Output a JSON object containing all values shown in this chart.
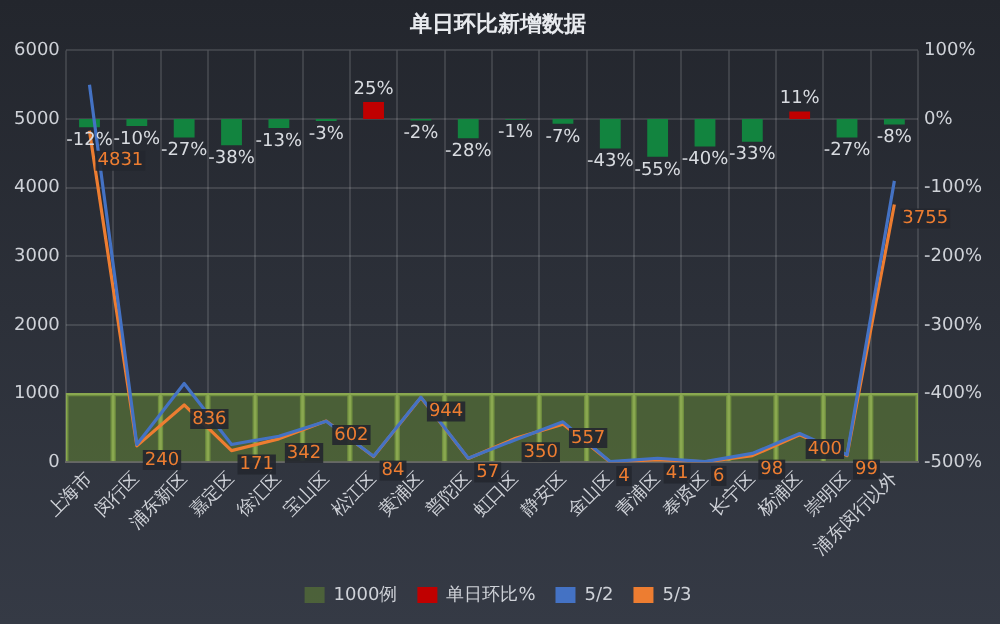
{
  "chart_data": {
    "type": "bar",
    "title": "单日环比新增数据",
    "categories": [
      "上海市",
      "闵行区",
      "浦东新区",
      "嘉定区",
      "徐汇区",
      "宝山区",
      "松江区",
      "黄浦区",
      "普陀区",
      "虹口区",
      "静安区",
      "金山区",
      "青浦区",
      "奉贤区",
      "长宁区",
      "杨浦区",
      "崇明区",
      "浦东闵行以外"
    ],
    "series": [
      {
        "name": "1000例",
        "color": "#5e7d34",
        "values": [
          1000,
          1000,
          1000,
          1000,
          1000,
          1000,
          1000,
          1000,
          1000,
          1000,
          1000,
          1000,
          1000,
          1000,
          1000,
          1000,
          1000,
          1000
        ]
      },
      {
        "name": "单日环比%",
        "axis": "y2",
        "color": "#c00000",
        "colors": [
          "#12843f",
          "#12843f",
          "#12843f",
          "#12843f",
          "#12843f",
          "#12843f",
          "#c00000",
          "#12843f",
          "#12843f",
          "#12843f",
          "#12843f",
          "#12843f",
          "#12843f",
          "#12843f",
          "#12843f",
          "#c00000",
          "#12843f",
          "#12843f"
        ],
        "values": [
          -12,
          -10,
          -27,
          -38,
          -13,
          -3,
          25,
          -2,
          -28,
          -1,
          -7,
          -43,
          -55,
          -40,
          -33,
          11,
          -27,
          -8
        ],
        "value_labels": [
          "-12%",
          "-10%",
          "-27%",
          "-38%",
          "-13%",
          "-3%",
          "25%",
          "-2%",
          "-28%",
          "-1%",
          "-7%",
          "-43%",
          "-55%",
          "-40%",
          "-33%",
          "11%",
          "-27%",
          "-8%"
        ]
      },
      {
        "name": "5/2",
        "type": "line",
        "color": "#4472c4",
        "values": [
          5500,
          260,
          1150,
          260,
          380,
          600,
          90,
          950,
          60,
          330,
          590,
          10,
          60,
          10,
          130,
          420,
          110,
          4100
        ]
      },
      {
        "name": "5/3",
        "type": "line",
        "color": "#ed7d31",
        "values": [
          4831,
          240,
          836,
          171,
          342,
          602,
          84,
          944,
          57,
          350,
          557,
          4,
          41,
          6,
          98,
          400,
          99,
          3755
        ],
        "value_labels": [
          "4831",
          "240",
          "836",
          "171",
          "342",
          "602",
          "84",
          "944",
          "57",
          "350",
          "557",
          "4",
          "41",
          "6",
          "98",
          "400",
          "99",
          "3755"
        ]
      }
    ],
    "ylim": [
      0,
      6000
    ],
    "yticks": [
      0,
      1000,
      2000,
      3000,
      4000,
      5000,
      6000
    ],
    "y2lim": [
      -500,
      100
    ],
    "y2ticks": [
      {
        "value": -500,
        "label": "-500%"
      },
      {
        "value": -400,
        "label": "-400%"
      },
      {
        "value": -300,
        "label": "-300%"
      },
      {
        "value": -200,
        "label": "-200%"
      },
      {
        "value": -100,
        "label": "-100%"
      },
      {
        "value": 0,
        "label": "0%"
      },
      {
        "value": 100,
        "label": "100%"
      }
    ],
    "grid": true,
    "legend": "bottom"
  }
}
